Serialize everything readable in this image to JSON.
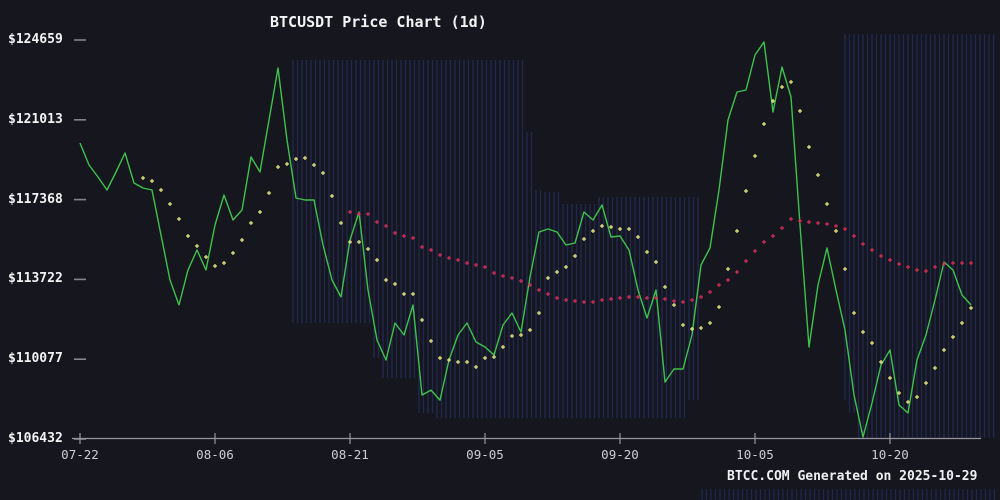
{
  "title": "BTCUSDT Price Chart (1d)",
  "footer": "BTCC.COM Generated on 2025-10-29",
  "y_axis_labels": [
    "$124659",
    "$121013",
    "$117368",
    "$113722",
    "$110077",
    "$106432"
  ],
  "x_axis_labels": [
    "07-22",
    "08-06",
    "08-21",
    "09-05",
    "09-20",
    "10-05",
    "10-20"
  ],
  "colors": {
    "background": "#15161e",
    "price_line": "#3fc24c",
    "ma7_dots": "#e6e67e",
    "ma30_dots": "#d22e55",
    "axis": "#97979f",
    "tick_label": "#cdced4",
    "value_label": "#f2f3f5",
    "stripe": "#242b57"
  },
  "chart_data": {
    "type": "line",
    "title": "BTCUSDT Price Chart (1d)",
    "x_start_date": "2025-07-22",
    "x_interval": "1 day",
    "generated_on": "2025-10-29",
    "x_ticks": [
      {
        "label": "07-22",
        "day": 0
      },
      {
        "label": "08-06",
        "day": 15
      },
      {
        "label": "08-21",
        "day": 30
      },
      {
        "label": "09-05",
        "day": 45
      },
      {
        "label": "09-20",
        "day": 60
      },
      {
        "label": "10-05",
        "day": 75
      },
      {
        "label": "10-20",
        "day": 90
      }
    ],
    "ylim": [
      106432,
      124659
    ],
    "y_tick_values": [
      124659,
      121013,
      117368,
      113722,
      110077,
      106432
    ],
    "grid": "none",
    "legend": "none",
    "series": [
      {
        "name": "price",
        "type": "line",
        "color": "#3fc24c",
        "start_day": 0,
        "values": [
          119954,
          118949,
          118400,
          117807,
          118629,
          119497,
          118126,
          117898,
          117807,
          115751,
          113695,
          112553,
          114152,
          115066,
          114152,
          116207,
          117578,
          116436,
          116893,
          119314,
          118629,
          121004,
          123380,
          120090,
          117441,
          117350,
          117350,
          115294,
          113695,
          112918,
          115523,
          116802,
          113238,
          110953,
          110039,
          111730,
          111182,
          112553,
          108440,
          108668,
          108211,
          110039,
          111182,
          111730,
          110862,
          110633,
          110268,
          111639,
          112187,
          111319,
          113832,
          115888,
          116025,
          115888,
          115294,
          115386,
          116802,
          116436,
          117121,
          115660,
          115705,
          115066,
          113238,
          111958,
          113238,
          109034,
          109628,
          109628,
          111182,
          114380,
          115157,
          117807,
          121004,
          122283,
          122375,
          123974,
          124568,
          121369,
          123425,
          122055,
          116207,
          110633,
          113466,
          115157,
          113238,
          111410,
          108440,
          106521,
          108075,
          109811,
          110496,
          107984,
          107618,
          110039,
          111182,
          112781,
          114517,
          114152,
          113010,
          112553
        ]
      },
      {
        "name": "ma7",
        "type": "dot-markers",
        "color": "#e6e67e",
        "start_day": 7,
        "values": [
          118354,
          118217,
          117806,
          117166,
          116481,
          115704,
          115247,
          114745,
          114334,
          114471,
          114928,
          115522,
          116299,
          116801,
          117669,
          118857,
          118994,
          119223,
          119268,
          118949,
          118583,
          117532,
          116299,
          115431,
          115431,
          115111,
          114608,
          113695,
          113512,
          113055,
          113055,
          111867,
          110908,
          110131,
          110040,
          109948,
          109948,
          109720,
          110131,
          110177,
          110634,
          111136,
          111182,
          111410,
          112187,
          113786,
          114060,
          114289,
          114791,
          115568,
          115933,
          116162,
          116116,
          116025,
          116025,
          115659,
          114974,
          114517,
          113375,
          112553,
          111639,
          111456,
          111502,
          111730,
          112461,
          114197,
          115933,
          117760,
          119359,
          120821,
          121872,
          122512,
          122740,
          121415,
          119770,
          118491,
          117166,
          115933,
          114197,
          112187,
          111319,
          110816,
          109948,
          109217,
          108532,
          108121,
          108349,
          108989,
          109674,
          110497,
          111090,
          111730,
          112415
        ]
      },
      {
        "name": "ma30",
        "type": "dot-markers",
        "color": "#d22e55",
        "start_day": 30,
        "values": [
          116801,
          116710,
          116710,
          116344,
          116162,
          115842,
          115705,
          115613,
          115202,
          115065,
          114837,
          114700,
          114608,
          114471,
          114380,
          114288,
          114014,
          113877,
          113786,
          113649,
          113466,
          113238,
          113055,
          112872,
          112781,
          112735,
          112689,
          112689,
          112781,
          112827,
          112872,
          112918,
          112918,
          112872,
          112872,
          112827,
          112735,
          112689,
          112781,
          112918,
          113147,
          113466,
          113695,
          114060,
          114563,
          115019,
          115431,
          115705,
          116070,
          116481,
          116390,
          116344,
          116299,
          116253,
          116162,
          116025,
          115705,
          115339,
          115065,
          114791,
          114608,
          114425,
          114288,
          114151,
          114106,
          114288,
          114425,
          114471,
          114471,
          114471
        ]
      }
    ]
  }
}
